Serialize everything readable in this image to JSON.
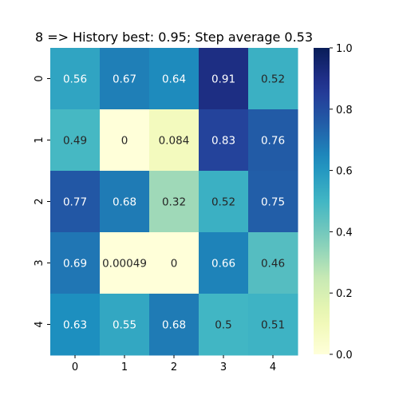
{
  "chart_data": {
    "type": "heatmap",
    "title": "8 => History best: 0.95; Step average 0.53",
    "xlabel": "",
    "ylabel": "",
    "x_ticks": [
      "0",
      "1",
      "2",
      "3",
      "4"
    ],
    "y_ticks": [
      "0",
      "1",
      "2",
      "3",
      "4"
    ],
    "values": [
      [
        0.56,
        0.67,
        0.64,
        0.91,
        0.52
      ],
      [
        0.49,
        0,
        0.084,
        0.83,
        0.76
      ],
      [
        0.77,
        0.68,
        0.32,
        0.52,
        0.75
      ],
      [
        0.69,
        0.00049,
        0,
        0.66,
        0.46
      ],
      [
        0.63,
        0.55,
        0.68,
        0.5,
        0.51
      ]
    ],
    "colormap": "YlGnBu",
    "vmin": 0,
    "vmax": 1,
    "colorbar_ticks": [
      "0.0",
      "0.2",
      "0.4",
      "0.6",
      "0.8",
      "1.0"
    ],
    "annotations": true
  }
}
